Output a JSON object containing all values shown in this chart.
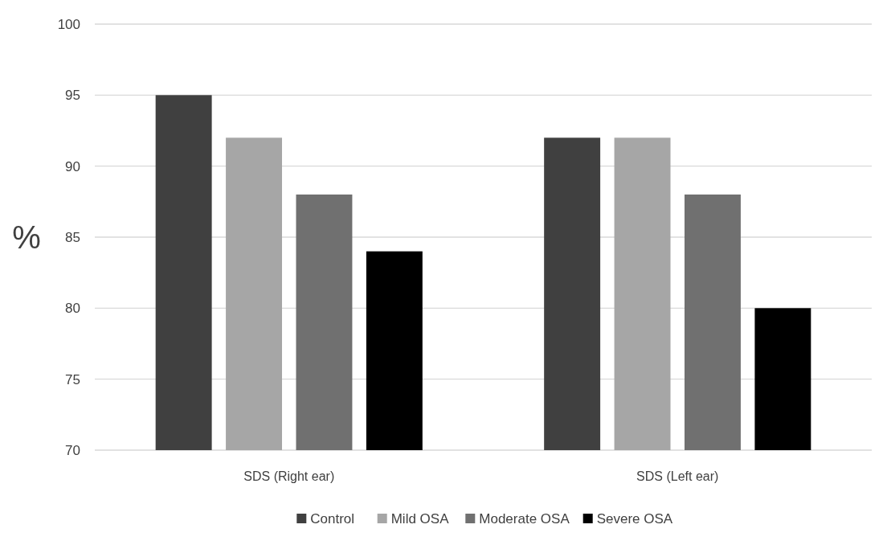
{
  "chart_data": {
    "type": "bar",
    "ylabel": "%",
    "categories": [
      "SDS (Right ear)",
      "SDS (Left ear)"
    ],
    "series": [
      {
        "name": "Control",
        "color": "#404040",
        "values": [
          95,
          92
        ]
      },
      {
        "name": "Mild OSA",
        "color": "#a6a6a6",
        "values": [
          92,
          92
        ]
      },
      {
        "name": "Moderate OSA",
        "color": "#707070",
        "values": [
          88,
          88
        ]
      },
      {
        "name": "Severe OSA",
        "color": "#000000",
        "values": [
          84,
          80
        ]
      }
    ],
    "ylim": [
      70,
      100
    ],
    "yticks": [
      70,
      75,
      80,
      85,
      90,
      95,
      100
    ],
    "grid": "y",
    "legend": "bottom"
  }
}
